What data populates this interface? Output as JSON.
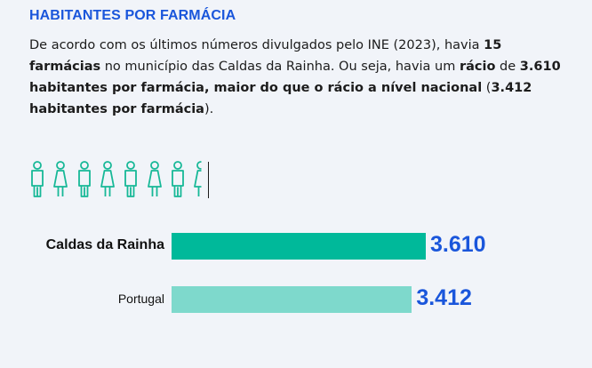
{
  "title": "HABITANTES POR FARMÁCIA",
  "description": {
    "p1": "De acordo com os últimos números divulgados pelo INE (2023), havia ",
    "b1": "15 farmácias",
    "p2": " no município das Caldas da Rainha. Ou seja, havia um ",
    "b2": "rácio",
    "p3": " de ",
    "b3": "3.610 habitantes por farmácia, maior do que o rácio a nível nacional",
    "p4": " (",
    "b4": "3.412 habitantes por farmácia",
    "p5": ")."
  },
  "icons": {
    "count": 8,
    "pattern": [
      "male",
      "female",
      "male",
      "female",
      "male",
      "female",
      "male",
      "female-half"
    ],
    "color": "#17b897"
  },
  "chart_data": {
    "type": "bar",
    "orientation": "horizontal",
    "categories": [
      "Caldas da Rainha",
      "Portugal"
    ],
    "values": [
      3610,
      3412
    ],
    "value_labels": [
      "3.610",
      "3.412"
    ],
    "colors": [
      "#00b99a",
      "#7ed9cc"
    ],
    "xlim": [
      0,
      3610
    ]
  }
}
